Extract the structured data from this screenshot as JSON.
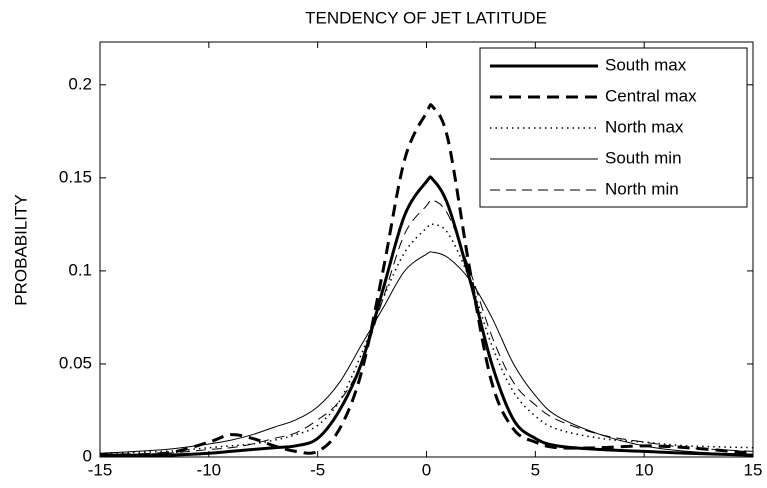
{
  "chart_data": {
    "type": "line",
    "title": "TENDENCY OF JET LATITUDE",
    "ylabel": "PROBABILITY",
    "x": [
      -15,
      -12,
      -10,
      -9,
      -8,
      -7,
      -6,
      -5,
      -4,
      -3,
      -2,
      -1,
      0,
      0.3,
      1,
      2,
      3,
      4,
      5,
      6,
      8,
      10,
      12,
      15
    ],
    "series": [
      {
        "name": "South max",
        "color": "#000000",
        "style": "solid",
        "width": 3,
        "values": [
          0.001,
          0.001,
          0.002,
          0.003,
          0.004,
          0.005,
          0.006,
          0.01,
          0.025,
          0.05,
          0.09,
          0.13,
          0.148,
          0.149,
          0.135,
          0.095,
          0.05,
          0.02,
          0.01,
          0.006,
          0.004,
          0.003,
          0.002,
          0.001
        ]
      },
      {
        "name": "Central max",
        "color": "#000000",
        "style": "dashed",
        "width": 3,
        "values": [
          0.001,
          0.002,
          0.008,
          0.012,
          0.01,
          0.006,
          0.003,
          0.003,
          0.015,
          0.045,
          0.1,
          0.16,
          0.185,
          0.188,
          0.17,
          0.1,
          0.04,
          0.015,
          0.008,
          0.005,
          0.005,
          0.006,
          0.005,
          0.002
        ]
      },
      {
        "name": "North max",
        "color": "#000000",
        "style": "dotted",
        "width": 1.5,
        "values": [
          0.002,
          0.003,
          0.005,
          0.006,
          0.007,
          0.009,
          0.012,
          0.017,
          0.03,
          0.055,
          0.085,
          0.11,
          0.123,
          0.125,
          0.12,
          0.095,
          0.06,
          0.035,
          0.022,
          0.015,
          0.01,
          0.008,
          0.006,
          0.005
        ]
      },
      {
        "name": "South min",
        "color": "#000000",
        "style": "solid",
        "width": 1,
        "values": [
          0.002,
          0.004,
          0.007,
          0.009,
          0.012,
          0.016,
          0.02,
          0.027,
          0.04,
          0.06,
          0.08,
          0.1,
          0.109,
          0.11,
          0.107,
          0.095,
          0.075,
          0.05,
          0.033,
          0.022,
          0.012,
          0.006,
          0.003,
          0.001
        ]
      },
      {
        "name": "North min",
        "color": "#000000",
        "style": "dashed",
        "width": 1,
        "values": [
          0.001,
          0.002,
          0.004,
          0.005,
          0.007,
          0.01,
          0.013,
          0.02,
          0.03,
          0.05,
          0.085,
          0.12,
          0.135,
          0.138,
          0.13,
          0.1,
          0.065,
          0.04,
          0.028,
          0.02,
          0.012,
          0.008,
          0.005,
          0.003
        ]
      }
    ],
    "xlim": [
      -15,
      15
    ],
    "ylim": [
      0,
      0.223
    ],
    "xticks": [
      -15,
      -10,
      -5,
      0,
      5,
      10,
      15
    ],
    "yticks": [
      0,
      0.05,
      0.1,
      0.15,
      0.2
    ],
    "grid": false,
    "legend": "top-right"
  }
}
